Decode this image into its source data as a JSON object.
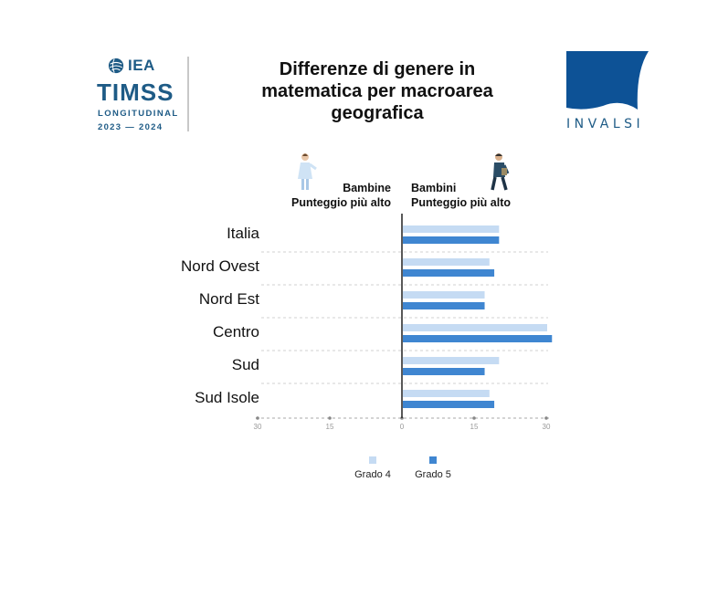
{
  "header": {
    "title_lines": [
      "Differenze di genere in",
      "matematica per macroarea",
      "geografica"
    ],
    "logo_left": {
      "org": "IEA",
      "name": "TIMSS",
      "sub": "LONGITUDINAL",
      "years": "2023 — 2024"
    },
    "logo_right": {
      "name": "INVALSI"
    }
  },
  "labels": {
    "girls": [
      "Bambine",
      "Punteggio più alto"
    ],
    "boys": [
      "Bambini",
      "Punteggio più alto"
    ]
  },
  "colors": {
    "grade4": "#c5dbf3",
    "grade5": "#3f86d1",
    "brand": "#1e5b86",
    "invalsi_blue": "#0d5296"
  },
  "icons": [
    "girl-figure-icon",
    "boy-figure-icon",
    "globe-icon"
  ],
  "chart_data": {
    "type": "bar",
    "orientation": "horizontal",
    "categories": [
      "Italia",
      "Nord Ovest",
      "Nord Est",
      "Centro",
      "Sud",
      "Sud Isole"
    ],
    "series": [
      {
        "name": "Grado 4",
        "values": [
          20,
          18,
          17,
          30,
          20,
          18
        ]
      },
      {
        "name": "Grado 5",
        "values": [
          20,
          19,
          17,
          31,
          17,
          19
        ]
      }
    ],
    "xlim": [
      -30,
      30
    ],
    "xticks": [
      "30",
      "15",
      "0",
      "15",
      "30"
    ],
    "grid": true,
    "legend": "bottom"
  }
}
